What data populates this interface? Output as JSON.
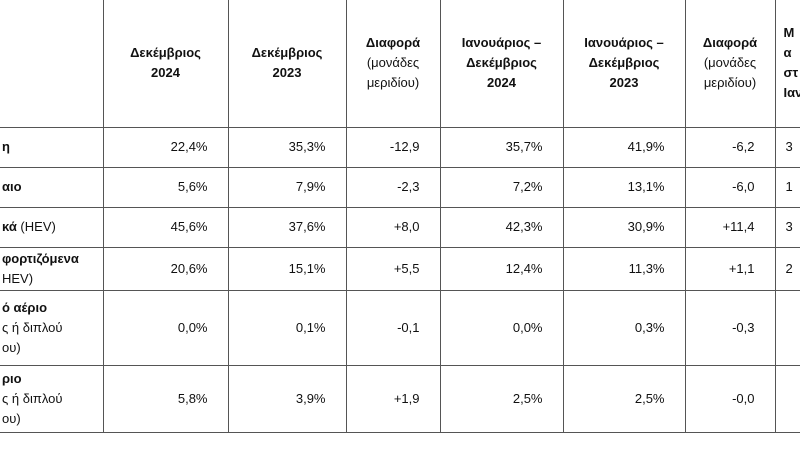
{
  "table": {
    "header": [
      [],
      [
        [
          {
            "text": "Δεκέμβριος",
            "bold": true
          }
        ],
        [
          {
            "text": "2024",
            "bold": true
          }
        ]
      ],
      [
        [
          {
            "text": "Δεκέμβριος",
            "bold": true
          }
        ],
        [
          {
            "text": "2023",
            "bold": true
          }
        ]
      ],
      [
        [
          {
            "text": "Διαφορά",
            "bold": true
          }
        ],
        [
          {
            "text": "(μονάδες",
            "bold": false
          }
        ],
        [
          {
            "text": "μεριδίου)",
            "bold": false
          }
        ]
      ],
      [
        [
          {
            "text": "Ιανουάριος –",
            "bold": true
          }
        ],
        [
          {
            "text": "Δεκέμβριος",
            "bold": true
          }
        ],
        [
          {
            "text": "2024",
            "bold": true
          }
        ]
      ],
      [
        [
          {
            "text": "Ιανουάριος –",
            "bold": true
          }
        ],
        [
          {
            "text": "Δεκέμβριος",
            "bold": true
          }
        ],
        [
          {
            "text": "2023",
            "bold": true
          }
        ]
      ],
      [
        [
          {
            "text": "Διαφορά",
            "bold": true
          }
        ],
        [
          {
            "text": "(μονάδες",
            "bold": false
          }
        ],
        [
          {
            "text": "μεριδίου)",
            "bold": false
          }
        ]
      ],
      [
        [
          {
            "text": "Μ",
            "bold": true
          }
        ],
        [
          {
            "text": "α",
            "bold": true
          }
        ],
        [
          {
            "text": "στ",
            "bold": true
          }
        ],
        [
          {
            "text": "Ιαν",
            "bold": true
          }
        ]
      ]
    ],
    "rows": [
      {
        "label": [
          [
            {
              "text": "η",
              "bold": true
            }
          ]
        ],
        "values": [
          "22,4%",
          "35,3%",
          "-12,9",
          "35,7%",
          "41,9%",
          "-6,2"
        ],
        "extra": "3"
      },
      {
        "label": [
          [
            {
              "text": "αιο",
              "bold": true
            }
          ]
        ],
        "values": [
          "5,6%",
          "7,9%",
          "-2,3",
          "7,2%",
          "13,1%",
          "-6,0"
        ],
        "extra": "1"
      },
      {
        "label": [
          [
            {
              "text": "κά",
              "bold": true
            },
            {
              "text": " (HEV)",
              "bold": false
            }
          ]
        ],
        "values": [
          "45,6%",
          "37,6%",
          "+8,0",
          "42,3%",
          "30,9%",
          "+11,4"
        ],
        "extra": "3"
      },
      {
        "label": [
          [
            {
              "text": "φορτιζόμενα",
              "bold": true
            }
          ],
          [
            {
              "text": "HEV)",
              "bold": false
            }
          ]
        ],
        "values": [
          "20,6%",
          "15,1%",
          "+5,5",
          "12,4%",
          "11,3%",
          "+1,1"
        ],
        "extra": "2"
      },
      {
        "label": [
          [
            {
              "text": "ό αέριο",
              "bold": true
            }
          ],
          [
            {
              "text": "ς ή διπλού",
              "bold": false
            }
          ],
          [
            {
              "text": "ου)",
              "bold": false
            }
          ]
        ],
        "values": [
          "0,0%",
          "0,1%",
          "-0,1",
          "0,0%",
          "0,3%",
          "-0,3"
        ]
      },
      {
        "label": [
          [
            {
              "text": "ριο",
              "bold": true
            }
          ],
          [
            {
              "text": "ς ή διπλού",
              "bold": false
            }
          ],
          [
            {
              "text": "ου)",
              "bold": false
            }
          ]
        ],
        "values": [
          "5,8%",
          "3,9%",
          "+1,9",
          "2,5%",
          "2,5%",
          "-0,0"
        ]
      }
    ]
  }
}
